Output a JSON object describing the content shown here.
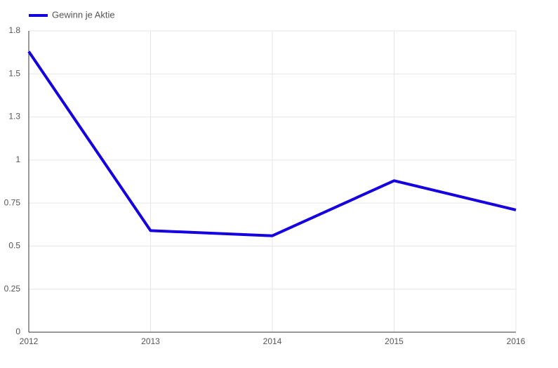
{
  "chart_data": {
    "type": "line",
    "x": [
      2012,
      2013,
      2014,
      2015,
      2016
    ],
    "series": [
      {
        "name": "Gewinn je Aktie",
        "color": "#1500e0",
        "values": [
          1.63,
          0.59,
          0.56,
          0.88,
          0.71
        ]
      }
    ],
    "xlim": [
      2012,
      2016
    ],
    "xticks": [
      2012,
      2013,
      2014,
      2015,
      2016
    ],
    "ylim": [
      0,
      1.75
    ],
    "yticks": [
      0,
      0.25,
      0.5,
      0.75,
      1,
      {
        "value": 1.25,
        "label": "1.3"
      },
      1.5,
      {
        "value": 1.75,
        "label": "1.8"
      }
    ],
    "grid": true,
    "legend": "top-left"
  }
}
